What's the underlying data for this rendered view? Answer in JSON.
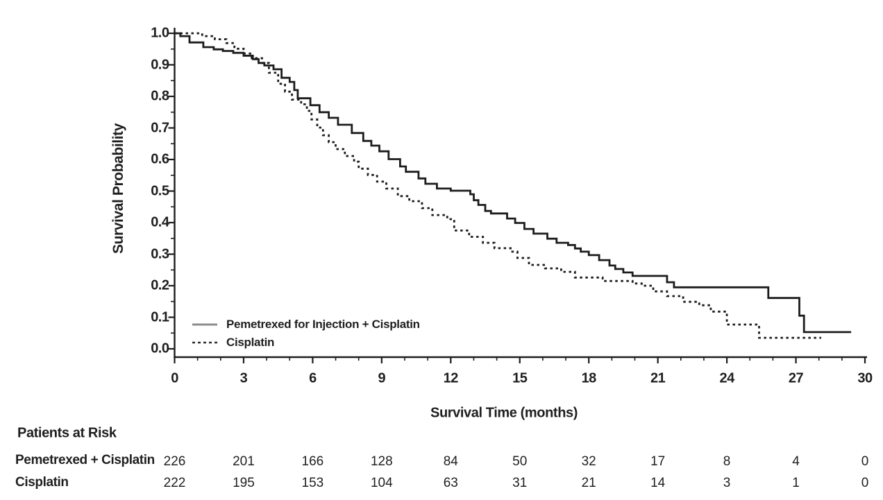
{
  "colors": {
    "ink": "#1c1c1c",
    "background": "#ffffff",
    "legend_solid_sample": "#8c8c8c"
  },
  "chart_data": {
    "type": "line",
    "variant": "kaplan-meier-step",
    "title": "",
    "xlabel": "Survival Time (months)",
    "ylabel": "Survival Probability",
    "xlim": [
      0,
      30
    ],
    "ylim": [
      0.0,
      1.0
    ],
    "grid": false,
    "legend_position": "inside-lower-left",
    "x_ticks": [
      0,
      3,
      6,
      9,
      12,
      15,
      18,
      21,
      24,
      27,
      30
    ],
    "x_minor_tick_step": 1,
    "y_ticks": [
      "0.0",
      "0.1",
      "0.2",
      "0.3",
      "0.4",
      "0.5",
      "0.6",
      "0.7",
      "0.8",
      "0.9",
      "1.0"
    ],
    "y_minor_tick_step": 0.05,
    "series": [
      {
        "name": "Pemetrexed for Injection + Cisplatin",
        "style": "solid",
        "color": "#1c1c1c",
        "points": [
          [
            0,
            1.0
          ],
          [
            0.25,
            0.991
          ],
          [
            0.65,
            0.971
          ],
          [
            1.25,
            0.956
          ],
          [
            1.7,
            0.949
          ],
          [
            2.1,
            0.944
          ],
          [
            2.55,
            0.938
          ],
          [
            3.0,
            0.929
          ],
          [
            3.4,
            0.918
          ],
          [
            3.65,
            0.906
          ],
          [
            3.9,
            0.898
          ],
          [
            4.3,
            0.886
          ],
          [
            4.65,
            0.859
          ],
          [
            5.0,
            0.846
          ],
          [
            5.2,
            0.82
          ],
          [
            5.35,
            0.794
          ],
          [
            5.9,
            0.772
          ],
          [
            6.3,
            0.75
          ],
          [
            6.7,
            0.732
          ],
          [
            7.1,
            0.71
          ],
          [
            7.7,
            0.684
          ],
          [
            8.2,
            0.659
          ],
          [
            8.55,
            0.644
          ],
          [
            8.9,
            0.626
          ],
          [
            9.3,
            0.601
          ],
          [
            9.8,
            0.578
          ],
          [
            10.05,
            0.561
          ],
          [
            10.6,
            0.54
          ],
          [
            10.9,
            0.523
          ],
          [
            11.4,
            0.508
          ],
          [
            12.0,
            0.501
          ],
          [
            12.85,
            0.49
          ],
          [
            13.0,
            0.471
          ],
          [
            13.2,
            0.456
          ],
          [
            13.5,
            0.437
          ],
          [
            13.75,
            0.429
          ],
          [
            14.45,
            0.413
          ],
          [
            14.8,
            0.399
          ],
          [
            15.2,
            0.38
          ],
          [
            15.6,
            0.365
          ],
          [
            16.2,
            0.349
          ],
          [
            16.6,
            0.336
          ],
          [
            17.1,
            0.329
          ],
          [
            17.4,
            0.318
          ],
          [
            17.65,
            0.308
          ],
          [
            18.0,
            0.297
          ],
          [
            18.45,
            0.281
          ],
          [
            18.9,
            0.264
          ],
          [
            19.15,
            0.253
          ],
          [
            19.5,
            0.242
          ],
          [
            19.9,
            0.231
          ],
          [
            21.4,
            0.211
          ],
          [
            21.7,
            0.195
          ],
          [
            25.8,
            0.161
          ],
          [
            27.15,
            0.105
          ],
          [
            27.35,
            0.053
          ],
          [
            29.4,
            0.053
          ]
        ]
      },
      {
        "name": "Cisplatin",
        "style": "dotted",
        "color": "#1c1c1c",
        "points": [
          [
            0,
            1.0
          ],
          [
            1.2,
            0.991
          ],
          [
            1.75,
            0.981
          ],
          [
            2.25,
            0.969
          ],
          [
            2.6,
            0.951
          ],
          [
            3.0,
            0.936
          ],
          [
            3.35,
            0.921
          ],
          [
            3.8,
            0.906
          ],
          [
            4.1,
            0.875
          ],
          [
            4.5,
            0.84
          ],
          [
            4.8,
            0.815
          ],
          [
            5.1,
            0.79
          ],
          [
            5.5,
            0.775
          ],
          [
            5.75,
            0.754
          ],
          [
            5.95,
            0.727
          ],
          [
            6.2,
            0.701
          ],
          [
            6.45,
            0.677
          ],
          [
            6.7,
            0.655
          ],
          [
            7.0,
            0.633
          ],
          [
            7.4,
            0.611
          ],
          [
            7.8,
            0.593
          ],
          [
            8.0,
            0.571
          ],
          [
            8.4,
            0.551
          ],
          [
            8.8,
            0.53
          ],
          [
            9.2,
            0.508
          ],
          [
            9.7,
            0.484
          ],
          [
            10.2,
            0.468
          ],
          [
            10.75,
            0.446
          ],
          [
            11.2,
            0.424
          ],
          [
            11.85,
            0.411
          ],
          [
            12.15,
            0.375
          ],
          [
            12.8,
            0.355
          ],
          [
            13.4,
            0.336
          ],
          [
            13.9,
            0.319
          ],
          [
            14.6,
            0.308
          ],
          [
            14.9,
            0.288
          ],
          [
            15.4,
            0.266
          ],
          [
            16.1,
            0.255
          ],
          [
            16.8,
            0.244
          ],
          [
            17.4,
            0.226
          ],
          [
            18.6,
            0.215
          ],
          [
            19.9,
            0.207
          ],
          [
            20.3,
            0.2
          ],
          [
            20.8,
            0.182
          ],
          [
            21.4,
            0.167
          ],
          [
            22.1,
            0.149
          ],
          [
            22.8,
            0.138
          ],
          [
            23.3,
            0.118
          ],
          [
            24.0,
            0.077
          ],
          [
            25.4,
            0.035
          ],
          [
            28.1,
            0.035
          ]
        ]
      }
    ],
    "at_risk_table": {
      "header": "Patients at Risk",
      "time_points": [
        0,
        3,
        6,
        9,
        12,
        15,
        18,
        21,
        24,
        27,
        30
      ],
      "rows": [
        {
          "label": "Pemetrexed + Cisplatin",
          "counts": [
            226,
            201,
            166,
            128,
            84,
            50,
            32,
            17,
            8,
            4,
            0
          ]
        },
        {
          "label": "Cisplatin",
          "counts": [
            222,
            195,
            153,
            104,
            63,
            31,
            21,
            14,
            3,
            1,
            0
          ]
        }
      ]
    }
  }
}
